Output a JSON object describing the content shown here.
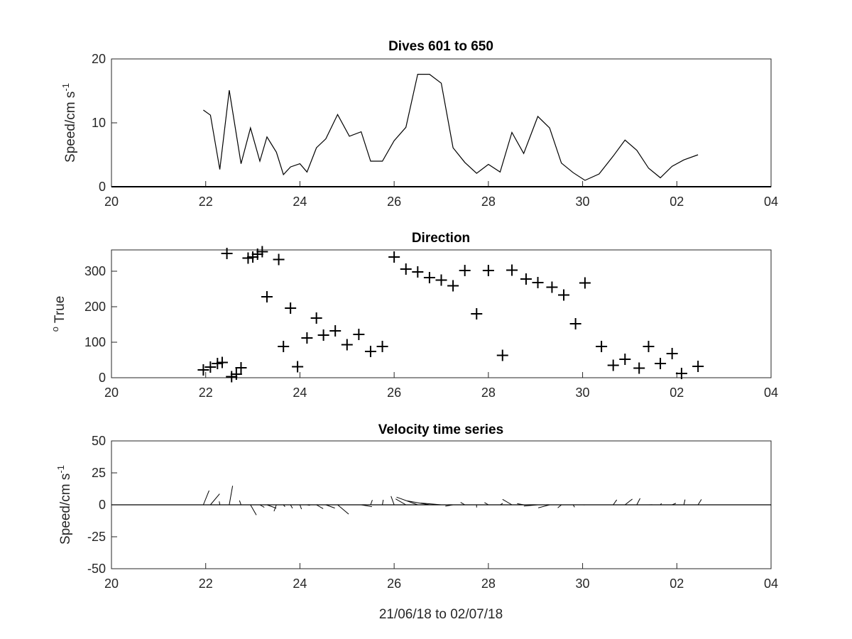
{
  "chart_data": [
    {
      "type": "line",
      "title": "Dives 601 to 650",
      "ylabel": "Speed/cm s",
      "ylabel_superscript": "-1",
      "xlabel": "",
      "x_tick_labels": [
        "20",
        "22",
        "24",
        "26",
        "28",
        "30",
        "02",
        "04"
      ],
      "y_tick_labels": [
        "0",
        "10",
        "20"
      ],
      "xlim": [
        20,
        34
      ],
      "ylim": [
        0,
        20
      ],
      "grid": false,
      "series": [
        {
          "x": [
            21.95,
            22.1,
            22.3,
            22.5,
            22.75,
            22.95,
            23.15,
            23.3,
            23.5,
            23.65,
            23.8,
            24.0,
            24.15,
            24.35,
            24.55,
            24.8,
            25.05,
            25.3,
            25.5,
            25.75,
            26.0,
            26.25,
            26.5,
            26.75,
            27.0,
            27.25,
            27.5,
            27.75,
            28.0,
            28.25,
            28.5,
            28.75,
            29.05,
            29.3,
            29.55,
            29.8,
            30.05,
            30.35,
            30.65,
            30.9,
            31.15,
            31.4,
            31.65,
            31.9,
            32.15,
            32.45
          ],
          "y": [
            12,
            11.2,
            2.7,
            15.1,
            3.6,
            9.2,
            4.0,
            7.8,
            5.4,
            1.9,
            3.1,
            3.6,
            2.3,
            6.1,
            7.5,
            11.3,
            7.9,
            8.6,
            4.0,
            4.0,
            7.2,
            9.3,
            17.6,
            17.6,
            16.2,
            6.1,
            3.8,
            2.1,
            3.5,
            2.3,
            8.5,
            5.2,
            11.0,
            9.2,
            3.7,
            2.2,
            1.0,
            2.0,
            4.8,
            7.3,
            5.7,
            2.9,
            1.4,
            3.2,
            4.2,
            5.0
          ]
        }
      ]
    },
    {
      "type": "scatter",
      "title": "Direction",
      "ylabel": " True",
      "ylabel_superscript": "o",
      "xlabel": "",
      "x_tick_labels": [
        "20",
        "22",
        "24",
        "26",
        "28",
        "30",
        "02",
        "04"
      ],
      "y_tick_labels": [
        "0",
        "100",
        "200",
        "300"
      ],
      "xlim": [
        20,
        34
      ],
      "ylim": [
        0,
        360
      ],
      "grid": false,
      "marker": "+",
      "series": [
        {
          "x": [
            21.95,
            22.1,
            22.25,
            22.35,
            22.45,
            22.55,
            22.65,
            22.75,
            22.9,
            23.0,
            23.1,
            23.2,
            23.3,
            23.55,
            23.65,
            23.8,
            23.95,
            24.15,
            24.35,
            24.5,
            24.75,
            25.0,
            25.25,
            25.5,
            25.75,
            26.0,
            26.25,
            26.5,
            26.75,
            27.0,
            27.25,
            27.5,
            27.75,
            28.0,
            28.3,
            28.5,
            28.8,
            29.05,
            29.35,
            29.6,
            29.85,
            30.05,
            30.4,
            30.65,
            30.9,
            31.2,
            31.4,
            31.65,
            31.9,
            32.1,
            32.45
          ],
          "y": [
            22,
            30,
            40,
            43,
            350,
            3,
            10,
            28,
            337,
            340,
            348,
            355,
            228,
            333,
            88,
            196,
            31,
            112,
            168,
            120,
            132,
            93,
            122,
            74,
            88,
            340,
            306,
            298,
            282,
            275,
            259,
            302,
            180,
            302,
            63,
            303,
            278,
            268,
            255,
            233,
            152,
            267,
            88,
            35,
            52,
            27,
            88,
            40,
            68,
            12,
            32
          ]
        }
      ]
    },
    {
      "type": "quiver",
      "title": "Velocity time series",
      "ylabel": "Speed/cm s",
      "ylabel_superscript": "-1",
      "xlabel": "21/06/18 to 02/07/18",
      "x_tick_labels": [
        "20",
        "22",
        "24",
        "26",
        "28",
        "30",
        "02",
        "04"
      ],
      "y_tick_labels": [
        "-50",
        "-25",
        "0",
        "25",
        "50"
      ],
      "xlim": [
        20,
        34
      ],
      "ylim": [
        -50,
        50
      ],
      "grid": false,
      "baseline": 0,
      "series": [
        {
          "x": [
            21.95,
            22.1,
            22.3,
            22.5,
            22.75,
            22.95,
            23.15,
            23.3,
            23.5,
            23.65,
            23.8,
            24.0,
            24.15,
            24.35,
            24.55,
            24.8,
            25.05,
            25.3,
            25.5,
            25.75,
            26.0,
            26.25,
            26.5,
            26.75,
            27.0,
            27.25,
            27.5,
            27.75,
            28.0,
            28.25,
            28.5,
            28.75,
            29.05,
            29.3,
            29.55,
            29.8,
            30.05,
            30.35,
            30.65,
            30.9,
            31.15,
            31.4,
            31.65,
            31.9,
            32.15,
            32.45
          ],
          "speed": [
            12,
            11.2,
            2.7,
            15.1,
            3.6,
            9.2,
            4.0,
            7.8,
            5.4,
            1.9,
            3.1,
            3.6,
            2.3,
            6.1,
            7.5,
            11.3,
            7.9,
            8.6,
            4.0,
            4.0,
            7.2,
            9.3,
            17.6,
            17.6,
            16.2,
            6.1,
            3.8,
            2.1,
            3.5,
            2.3,
            8.5,
            5.2,
            11.0,
            9.2,
            3.7,
            2.2,
            1.0,
            2.0,
            4.8,
            7.3,
            5.7,
            2.9,
            1.4,
            3.2,
            4.2,
            5.0
          ],
          "direction": [
            22,
            40,
            350,
            10,
            340,
            150,
            120,
            110,
            200,
            140,
            150,
            160,
            100,
            120,
            110,
            130,
            90,
            100,
            20,
            10,
            340,
            300,
            290,
            280,
            275,
            260,
            300,
            180,
            300,
            60,
            300,
            280,
            265,
            255,
            230,
            150,
            265,
            90,
            35,
            52,
            27,
            88,
            40,
            68,
            12,
            32
          ]
        }
      ]
    }
  ]
}
